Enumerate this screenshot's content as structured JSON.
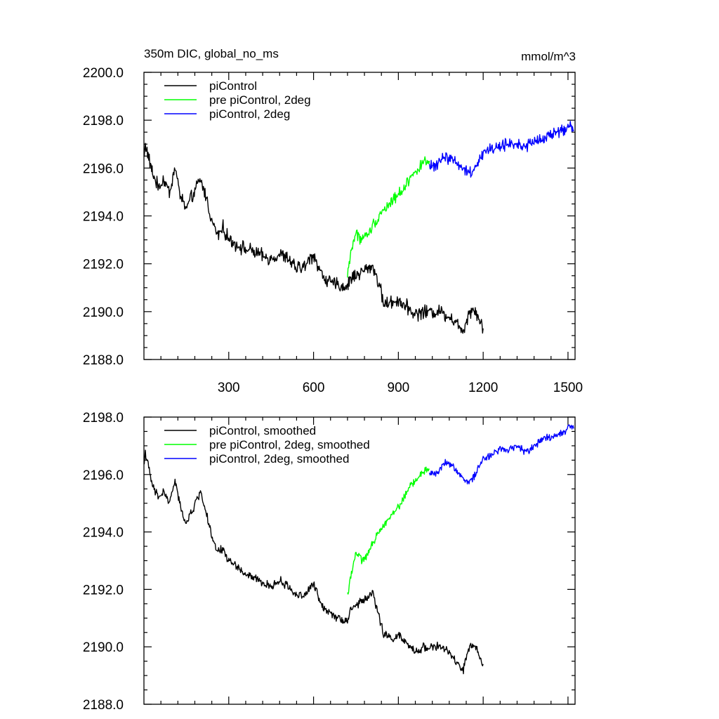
{
  "chart_data": [
    {
      "type": "line",
      "title": "350m DIC, global_no_ms",
      "units": "mmol/m^3",
      "xlim": [
        0,
        1525
      ],
      "ylim": [
        2188.0,
        2200.0
      ],
      "xticks": [
        300,
        600,
        900,
        1200,
        1500
      ],
      "x_tick_labels": [
        "300",
        "600",
        "900",
        "1200",
        "1500"
      ],
      "yticks": [
        2188.0,
        2190.0,
        2192.0,
        2194.0,
        2196.0,
        2198.0,
        2200.0
      ],
      "y_tick_labels": [
        "2188.0",
        "2190.0",
        "2192.0",
        "2194.0",
        "2196.0",
        "2198.0",
        "2200.0"
      ],
      "legend_position": "top-left",
      "grid": false,
      "series": [
        {
          "name": "piControl",
          "color": "#000000",
          "noise": 0.35,
          "x": [
            1,
            5,
            15,
            30,
            50,
            70,
            90,
            110,
            130,
            150,
            170,
            190,
            200,
            220,
            240,
            260,
            280,
            300,
            330,
            360,
            390,
            420,
            450,
            480,
            510,
            540,
            570,
            600,
            630,
            660,
            690,
            720,
            730,
            760,
            790,
            810,
            830,
            850,
            880,
            900,
            930,
            960,
            990,
            1020,
            1050,
            1080,
            1100,
            1130,
            1150,
            1170,
            1200
          ],
          "y": [
            2196.5,
            2197.0,
            2196.5,
            2195.8,
            2195.2,
            2195.5,
            2195.0,
            2196.0,
            2194.8,
            2194.3,
            2194.8,
            2195.3,
            2195.5,
            2194.8,
            2193.8,
            2193.2,
            2193.5,
            2193.0,
            2192.8,
            2192.6,
            2192.5,
            2192.3,
            2192.2,
            2192.4,
            2192.2,
            2191.8,
            2191.9,
            2192.4,
            2191.5,
            2191.2,
            2191.1,
            2191.0,
            2191.4,
            2191.6,
            2191.8,
            2191.9,
            2191.2,
            2190.3,
            2190.4,
            2190.5,
            2190.2,
            2189.9,
            2190.0,
            2190.0,
            2190.0,
            2189.8,
            2189.6,
            2189.2,
            2190.0,
            2190.1,
            2189.3
          ]
        },
        {
          "name": "pre piControl, 2deg",
          "color": "#00ff00",
          "noise": 0.3,
          "x": [
            720,
            730,
            750,
            770,
            790,
            810,
            830,
            850,
            870,
            890,
            910,
            930,
            950,
            970,
            990,
            1010
          ],
          "y": [
            2191.5,
            2192.4,
            2193.3,
            2193.0,
            2193.2,
            2193.6,
            2194.0,
            2194.3,
            2194.5,
            2194.8,
            2195.0,
            2195.4,
            2195.7,
            2196.0,
            2196.2,
            2196.3
          ]
        },
        {
          "name": "piControl, 2deg",
          "color": "#0000ff",
          "noise": 0.3,
          "x": [
            1010,
            1040,
            1060,
            1080,
            1100,
            1120,
            1140,
            1160,
            1180,
            1200,
            1230,
            1260,
            1290,
            1320,
            1350,
            1380,
            1410,
            1440,
            1470,
            1490,
            1500,
            1520
          ],
          "y": [
            2196.0,
            2196.2,
            2196.5,
            2196.4,
            2196.3,
            2196.1,
            2195.9,
            2195.8,
            2196.3,
            2196.6,
            2196.8,
            2196.9,
            2197.0,
            2197.0,
            2196.9,
            2197.1,
            2197.2,
            2197.4,
            2197.5,
            2197.6,
            2197.8,
            2197.6
          ]
        }
      ]
    },
    {
      "type": "line",
      "title": "",
      "units": "",
      "xlim": [
        0,
        1525
      ],
      "ylim": [
        2188.0,
        2198.0
      ],
      "xticks": [
        300,
        600,
        900,
        1200,
        1500
      ],
      "x_tick_labels": [],
      "yticks": [
        2188.0,
        2190.0,
        2192.0,
        2194.0,
        2196.0,
        2198.0
      ],
      "y_tick_labels": [
        "2188.0",
        "2190.0",
        "2192.0",
        "2194.0",
        "2196.0",
        "2198.0"
      ],
      "legend_position": "top-left",
      "grid": false,
      "series": [
        {
          "name": "piControl, smoothed",
          "color": "#000000",
          "noise": 0.18,
          "x": [
            1,
            5,
            15,
            30,
            50,
            70,
            90,
            110,
            130,
            150,
            170,
            190,
            200,
            220,
            240,
            260,
            280,
            300,
            330,
            360,
            390,
            420,
            450,
            480,
            510,
            540,
            570,
            600,
            630,
            660,
            690,
            720,
            730,
            760,
            790,
            810,
            830,
            850,
            880,
            900,
            930,
            960,
            990,
            1020,
            1050,
            1080,
            1100,
            1130,
            1150,
            1170,
            1200
          ],
          "y": [
            2196.4,
            2196.8,
            2196.3,
            2195.6,
            2195.2,
            2195.4,
            2195.0,
            2195.8,
            2194.8,
            2194.3,
            2194.7,
            2195.2,
            2195.4,
            2194.7,
            2193.8,
            2193.3,
            2193.4,
            2193.0,
            2192.8,
            2192.5,
            2192.4,
            2192.2,
            2192.1,
            2192.3,
            2192.1,
            2191.8,
            2191.8,
            2192.2,
            2191.4,
            2191.2,
            2191.0,
            2190.9,
            2191.3,
            2191.5,
            2191.7,
            2191.9,
            2191.1,
            2190.4,
            2190.3,
            2190.4,
            2190.1,
            2189.8,
            2190.0,
            2190.0,
            2190.0,
            2189.8,
            2189.5,
            2189.2,
            2190.0,
            2190.0,
            2189.4
          ]
        },
        {
          "name": "pre piControl, 2deg, smoothed",
          "color": "#00ff00",
          "noise": 0.16,
          "x": [
            720,
            730,
            750,
            770,
            790,
            810,
            830,
            850,
            870,
            890,
            910,
            930,
            950,
            970,
            990,
            1010
          ],
          "y": [
            2191.8,
            2192.4,
            2193.3,
            2193.0,
            2193.2,
            2193.6,
            2194.0,
            2194.3,
            2194.5,
            2194.8,
            2195.0,
            2195.4,
            2195.7,
            2195.9,
            2196.1,
            2196.2
          ]
        },
        {
          "name": "piControl, 2deg, smoothed",
          "color": "#0000ff",
          "noise": 0.16,
          "x": [
            1010,
            1040,
            1060,
            1080,
            1100,
            1120,
            1140,
            1160,
            1180,
            1200,
            1230,
            1260,
            1290,
            1320,
            1350,
            1380,
            1410,
            1440,
            1470,
            1490,
            1500,
            1520
          ],
          "y": [
            2196.0,
            2196.1,
            2196.4,
            2196.4,
            2196.2,
            2196.0,
            2195.8,
            2195.8,
            2196.2,
            2196.5,
            2196.7,
            2196.9,
            2196.9,
            2197.0,
            2196.8,
            2197.0,
            2197.2,
            2197.3,
            2197.4,
            2197.5,
            2197.7,
            2197.6
          ]
        }
      ]
    }
  ]
}
